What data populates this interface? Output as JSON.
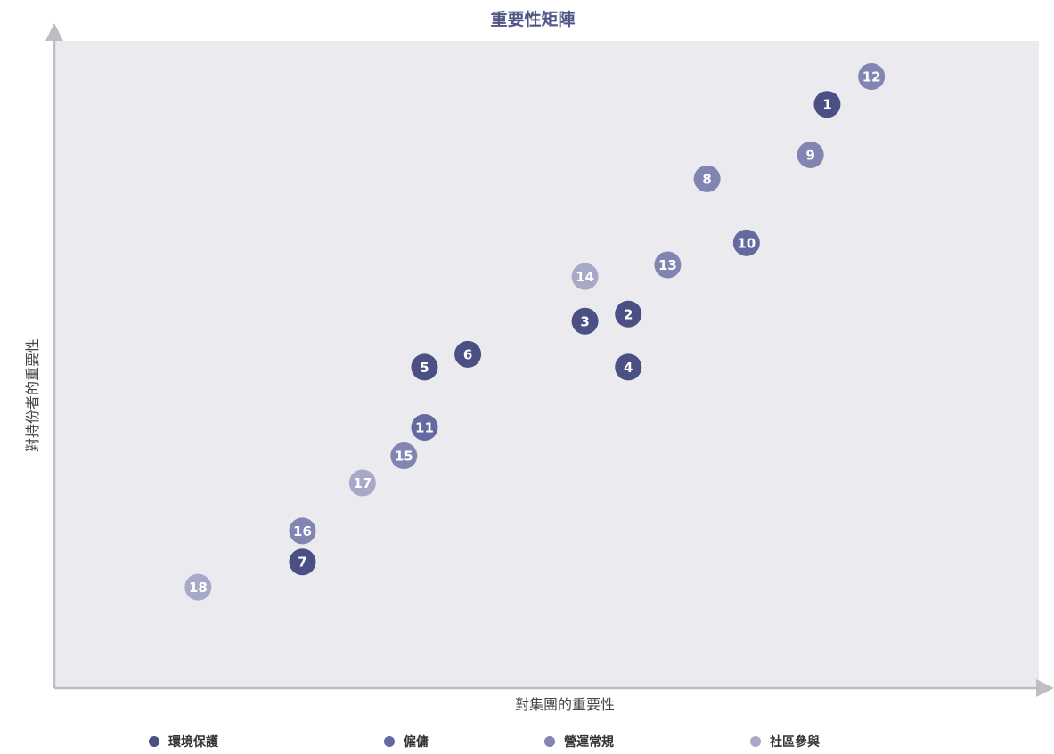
{
  "chart_data": {
    "type": "scatter",
    "title": "重要性矩陣",
    "xlabel": "對集團的重要性",
    "ylabel": "對持份者的重要性",
    "xlim": [
      0,
      100
    ],
    "ylim": [
      0,
      100
    ],
    "grid": false,
    "legend_position": "bottom",
    "series": [
      {
        "name": "環境保護",
        "color": "#4a5084",
        "points": [
          {
            "label": "1",
            "x": 78.5,
            "y": 90.2
          },
          {
            "label": "2",
            "x": 58.3,
            "y": 57.8
          },
          {
            "label": "3",
            "x": 53.9,
            "y": 56.7
          },
          {
            "label": "4",
            "x": 58.3,
            "y": 49.6
          },
          {
            "label": "5",
            "x": 37.6,
            "y": 49.6
          },
          {
            "label": "6",
            "x": 42.0,
            "y": 51.6
          },
          {
            "label": "7",
            "x": 25.2,
            "y": 19.5
          }
        ]
      },
      {
        "name": "僱傭",
        "color": "#6469a0",
        "points": [
          {
            "label": "10",
            "x": 70.3,
            "y": 68.8
          },
          {
            "label": "11",
            "x": 37.6,
            "y": 40.3
          }
        ]
      },
      {
        "name": "營運常規",
        "color": "#8285b1",
        "points": [
          {
            "label": "8",
            "x": 66.3,
            "y": 78.7
          },
          {
            "label": "9",
            "x": 76.8,
            "y": 82.4
          },
          {
            "label": "12",
            "x": 83.0,
            "y": 94.5
          },
          {
            "label": "13",
            "x": 62.3,
            "y": 65.4
          },
          {
            "label": "15",
            "x": 35.5,
            "y": 35.9
          },
          {
            "label": "16",
            "x": 25.2,
            "y": 24.3
          }
        ]
      },
      {
        "name": "社區參與",
        "color": "#a8a9c9",
        "points": [
          {
            "label": "14",
            "x": 53.9,
            "y": 63.6
          },
          {
            "label": "17",
            "x": 31.3,
            "y": 31.7
          },
          {
            "label": "18",
            "x": 14.6,
            "y": 15.6
          }
        ]
      }
    ]
  }
}
